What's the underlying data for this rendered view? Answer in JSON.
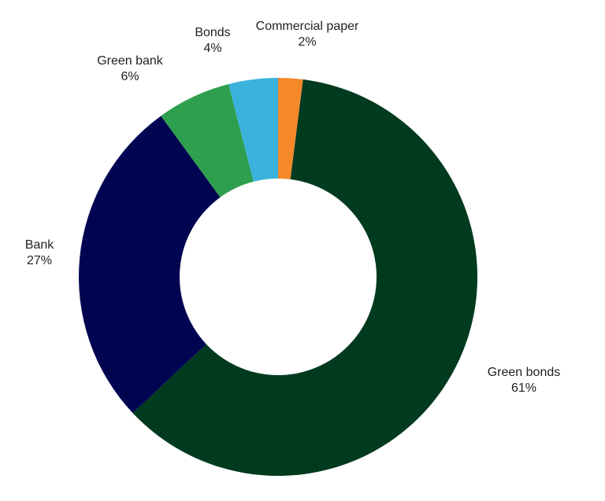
{
  "chart_data": {
    "type": "pie",
    "donut": true,
    "categories": [
      "Commercial paper",
      "Green bonds",
      "Bank",
      "Green bank",
      "Bonds"
    ],
    "values": [
      2,
      61,
      27,
      6,
      4
    ],
    "value_labels": [
      "2%",
      "61%",
      "27%",
      "6%",
      "4%"
    ],
    "colors": [
      "#f5892a",
      "#003a1f",
      "#010551",
      "#2e9e4f",
      "#3ab2dc"
    ]
  }
}
